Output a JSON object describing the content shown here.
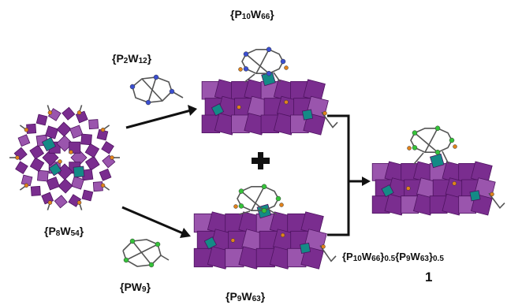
{
  "labels": {
    "p10w66": "{P10W66}",
    "p2w12": "{P2W12}",
    "p8w54": "{P8W54}",
    "pw9": "{PW9}",
    "p9w63": "{P9W63}",
    "product": "{P10W66}0.5{P9W63}0.5",
    "compound_number": "1",
    "plus_sign": "+"
  },
  "colors": {
    "polyhedron": "#7a2d8f",
    "polyhedron_dark": "#4e1360",
    "polyhedron_light": "#9a55ad",
    "teal": "#148a86",
    "orange": "#e0821c",
    "green": "#35c23a",
    "blue": "#3b4fd0",
    "wire": "#555555",
    "arrow": "#111111"
  }
}
